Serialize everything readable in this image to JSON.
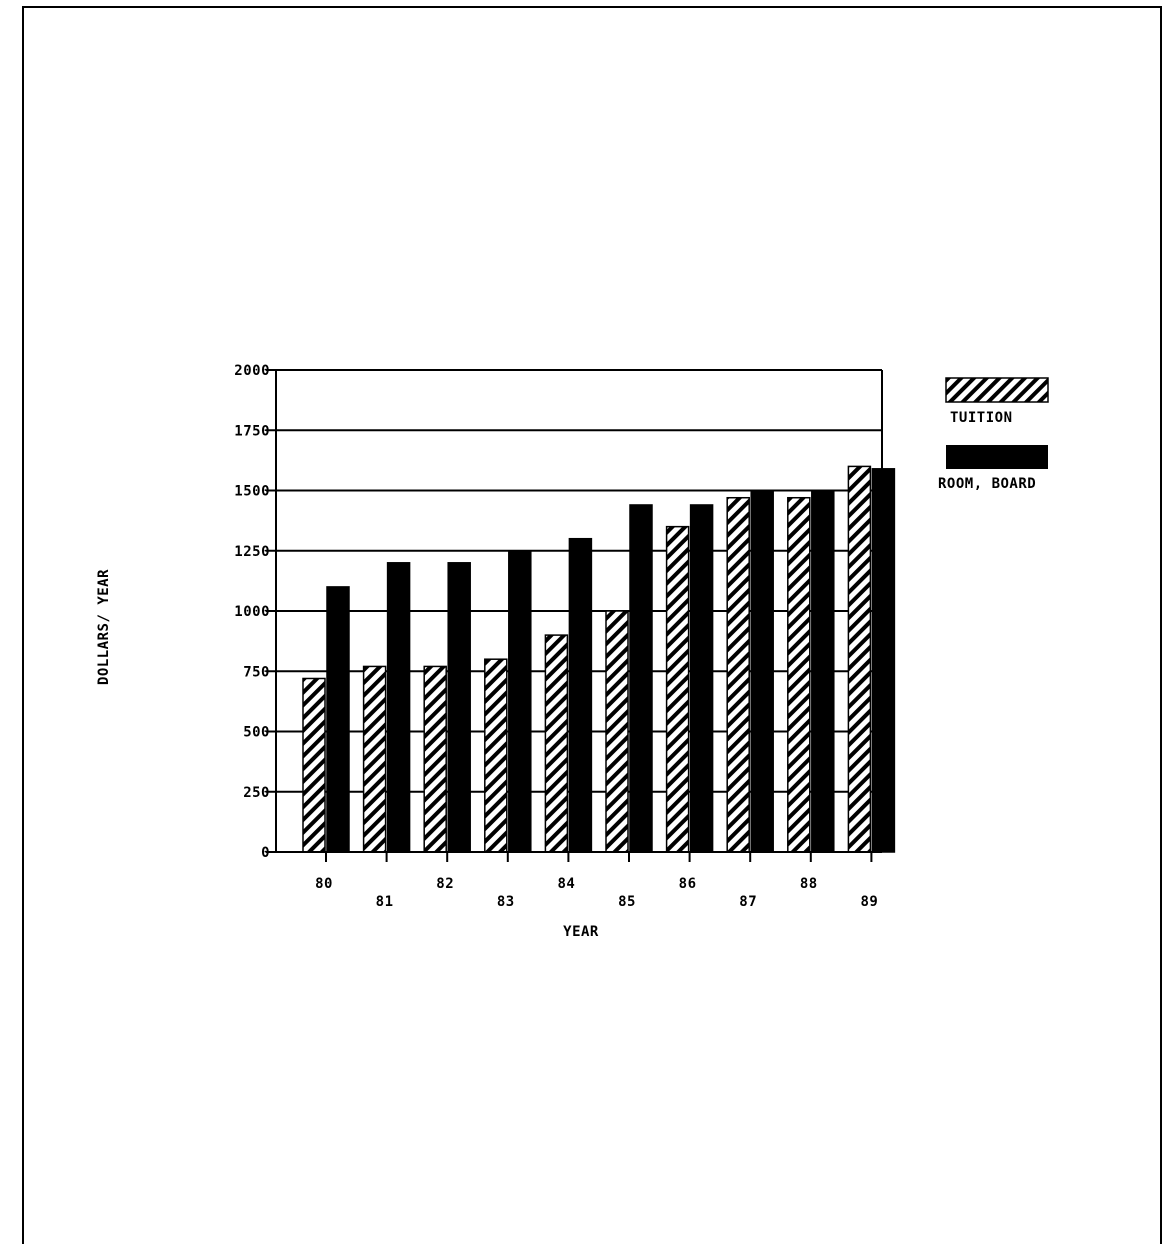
{
  "chart_data": {
    "type": "bar",
    "title": "",
    "xlabel": "YEAR",
    "ylabel": "DOLLARS/ YEAR",
    "categories": [
      "80",
      "81",
      "82",
      "83",
      "84",
      "85",
      "86",
      "87",
      "88",
      "89"
    ],
    "series": [
      {
        "name": "TUITION",
        "pattern": "diagonal-hatch",
        "values": [
          720,
          770,
          770,
          800,
          900,
          1000,
          1350,
          1470,
          1470,
          1600
        ]
      },
      {
        "name": "ROOM, BOARD",
        "pattern": "solid",
        "values": [
          1100,
          1200,
          1200,
          1250,
          1300,
          1440,
          1440,
          1500,
          1500,
          1590
        ]
      }
    ],
    "ylim": [
      0,
      2000
    ],
    "yticks": [
      "0",
      "250",
      "500",
      "750",
      "1000",
      "1250",
      "1500",
      "1750",
      "2000"
    ],
    "grid": true,
    "legend_position": "right",
    "colors": {
      "bar": "#000000",
      "background": "#ffffff"
    }
  }
}
